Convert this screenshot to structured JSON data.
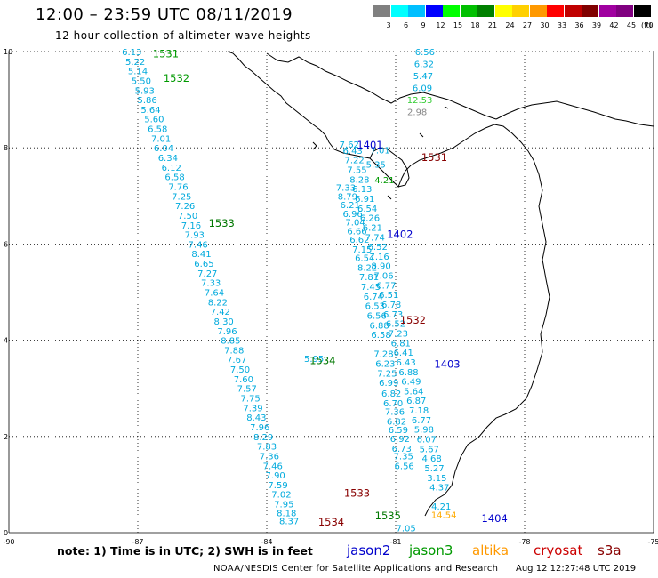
{
  "header": {
    "title": "12:00 – 23:59 UTC 08/11/2019",
    "subtitle": "12 hour collection of altimeter wave heights"
  },
  "legend": {
    "unit": "(ft)",
    "bins": [
      {
        "label": "3",
        "color": "#808080"
      },
      {
        "label": "6",
        "color": "#00ffff"
      },
      {
        "label": "9",
        "color": "#00bfff"
      },
      {
        "label": "12",
        "color": "#0000ff"
      },
      {
        "label": "15",
        "color": "#00ff00"
      },
      {
        "label": "18",
        "color": "#00c000"
      },
      {
        "label": "21",
        "color": "#008000"
      },
      {
        "label": "24",
        "color": "#ffff00"
      },
      {
        "label": "27",
        "color": "#ffd000"
      },
      {
        "label": "30",
        "color": "#ff9900"
      },
      {
        "label": "33",
        "color": "#ff0000"
      },
      {
        "label": "36",
        "color": "#c00000"
      },
      {
        "label": "39",
        "color": "#800000"
      },
      {
        "label": "42",
        "color": "#a000a0"
      },
      {
        "label": "45",
        "color": "#800080"
      },
      {
        "label": "70",
        "color": "#000000"
      }
    ]
  },
  "axes": {
    "lon_ticks": [
      "-90",
      "-87",
      "-84",
      "-81",
      "-78",
      "-75"
    ],
    "lat_ticks": [
      "0",
      "2",
      "4",
      "6",
      "8",
      "10"
    ],
    "xlim": [
      -90,
      -75
    ],
    "ylim": [
      0,
      10
    ]
  },
  "colors": {
    "cyan": "#00aadd",
    "green": "#009900",
    "lightgreen": "#33cc33",
    "gray": "#888888",
    "gold": "#ffaa00",
    "blue": "#0000cc",
    "darkgreen": "#007700",
    "darkred": "#880000"
  },
  "tracks": {
    "track_a": {
      "color": "cyan",
      "points": [
        {
          "lon": -87.14,
          "lat": 10.0,
          "v": "6.13"
        },
        {
          "lon": -87.06,
          "lat": 9.8,
          "v": "5.22"
        },
        {
          "lon": -87.0,
          "lat": 9.6,
          "v": "5.14"
        },
        {
          "lon": -86.92,
          "lat": 9.4,
          "v": "5.50"
        },
        {
          "lon": -86.84,
          "lat": 9.2,
          "v": "5.93"
        },
        {
          "lon": -86.78,
          "lat": 9.0,
          "v": "5.86"
        },
        {
          "lon": -86.7,
          "lat": 8.8,
          "v": "5.64"
        },
        {
          "lon": -86.62,
          "lat": 8.6,
          "v": "5.60"
        },
        {
          "lon": -86.54,
          "lat": 8.4,
          "v": "6.58"
        },
        {
          "lon": -86.46,
          "lat": 8.2,
          "v": "7.01"
        },
        {
          "lon": -86.4,
          "lat": 8.0,
          "v": "6.04"
        },
        {
          "lon": -86.3,
          "lat": 7.8,
          "v": "6.34"
        },
        {
          "lon": -86.22,
          "lat": 7.6,
          "v": "6.12"
        },
        {
          "lon": -86.14,
          "lat": 7.4,
          "v": "6.58"
        },
        {
          "lon": -86.06,
          "lat": 7.2,
          "v": "7.76"
        },
        {
          "lon": -85.98,
          "lat": 7.0,
          "v": "7.25"
        },
        {
          "lon": -85.9,
          "lat": 6.8,
          "v": "7.26"
        },
        {
          "lon": -85.84,
          "lat": 6.6,
          "v": "7.50"
        },
        {
          "lon": -85.76,
          "lat": 6.4,
          "v": "7.16"
        },
        {
          "lon": -85.68,
          "lat": 6.2,
          "v": "7.93"
        },
        {
          "lon": -85.6,
          "lat": 6.0,
          "v": "7.46"
        },
        {
          "lon": -85.52,
          "lat": 5.8,
          "v": "8.41"
        },
        {
          "lon": -85.46,
          "lat": 5.6,
          "v": "6.65"
        },
        {
          "lon": -85.38,
          "lat": 5.4,
          "v": "7.27"
        },
        {
          "lon": -85.3,
          "lat": 5.2,
          "v": "7.33"
        },
        {
          "lon": -85.22,
          "lat": 5.0,
          "v": "7.64"
        },
        {
          "lon": -85.14,
          "lat": 4.8,
          "v": "8.22"
        },
        {
          "lon": -85.08,
          "lat": 4.6,
          "v": "7.42"
        },
        {
          "lon": -85.0,
          "lat": 4.4,
          "v": "8.30"
        },
        {
          "lon": -84.92,
          "lat": 4.2,
          "v": "7.96"
        },
        {
          "lon": -84.84,
          "lat": 4.0,
          "v": "8.85"
        },
        {
          "lon": -84.76,
          "lat": 3.8,
          "v": "7.88"
        },
        {
          "lon": -84.7,
          "lat": 3.6,
          "v": "7.67"
        },
        {
          "lon": -84.62,
          "lat": 3.4,
          "v": "7.50"
        },
        {
          "lon": -84.54,
          "lat": 3.2,
          "v": "7.60"
        },
        {
          "lon": -84.46,
          "lat": 3.0,
          "v": "7.57"
        },
        {
          "lon": -84.38,
          "lat": 2.8,
          "v": "7.75"
        },
        {
          "lon": -84.32,
          "lat": 2.6,
          "v": "7.39"
        },
        {
          "lon": -84.24,
          "lat": 2.4,
          "v": "8.43"
        },
        {
          "lon": -84.16,
          "lat": 2.2,
          "v": "7.96"
        },
        {
          "lon": -84.08,
          "lat": 2.0,
          "v": "8.29"
        },
        {
          "lon": -84.0,
          "lat": 1.8,
          "v": "7.83"
        },
        {
          "lon": -83.94,
          "lat": 1.6,
          "v": "7.36"
        },
        {
          "lon": -83.86,
          "lat": 1.4,
          "v": "7.46"
        },
        {
          "lon": -83.8,
          "lat": 1.2,
          "v": "7.90"
        },
        {
          "lon": -83.74,
          "lat": 1.0,
          "v": "7.59"
        },
        {
          "lon": -83.66,
          "lat": 0.8,
          "v": "7.02"
        },
        {
          "lon": -83.6,
          "lat": 0.6,
          "v": "7.95"
        },
        {
          "lon": -83.54,
          "lat": 0.42,
          "v": "8.18"
        },
        {
          "lon": -83.48,
          "lat": 0.25,
          "v": "8.37"
        }
      ]
    },
    "track_b": {
      "color": "cyan",
      "points": [
        {
          "lon": -82.16,
          "lat": 7.18,
          "v": "7.33"
        },
        {
          "lon": -82.12,
          "lat": 7.0,
          "v": "8.79"
        },
        {
          "lon": -82.06,
          "lat": 6.82,
          "v": "6.21"
        },
        {
          "lon": -82.0,
          "lat": 6.64,
          "v": "6.96"
        },
        {
          "lon": -81.94,
          "lat": 6.46,
          "v": "7.04"
        },
        {
          "lon": -81.9,
          "lat": 6.28,
          "v": "6.66"
        },
        {
          "lon": -81.84,
          "lat": 6.1,
          "v": "6.62"
        },
        {
          "lon": -81.78,
          "lat": 5.9,
          "v": "7.15"
        },
        {
          "lon": -81.72,
          "lat": 5.72,
          "v": "6.54"
        },
        {
          "lon": -81.66,
          "lat": 5.52,
          "v": "8.22"
        },
        {
          "lon": -81.62,
          "lat": 5.32,
          "v": "7.81"
        },
        {
          "lon": -81.58,
          "lat": 5.12,
          "v": "7.45"
        },
        {
          "lon": -81.52,
          "lat": 4.92,
          "v": "6.74"
        },
        {
          "lon": -81.48,
          "lat": 4.72,
          "v": "6.53"
        },
        {
          "lon": -81.44,
          "lat": 4.52,
          "v": "6.56"
        },
        {
          "lon": -81.38,
          "lat": 4.32,
          "v": "6.88"
        },
        {
          "lon": -81.34,
          "lat": 4.12,
          "v": "6.58"
        },
        {
          "lon": -81.28,
          "lat": 3.72,
          "v": "7.28"
        },
        {
          "lon": -81.24,
          "lat": 3.52,
          "v": "6.23"
        },
        {
          "lon": -81.2,
          "lat": 3.32,
          "v": "7.25"
        },
        {
          "lon": -81.16,
          "lat": 3.12,
          "v": "6.99"
        },
        {
          "lon": -81.1,
          "lat": 2.9,
          "v": "6.82"
        },
        {
          "lon": -81.06,
          "lat": 2.7,
          "v": "6.70"
        },
        {
          "lon": -81.02,
          "lat": 2.52,
          "v": "7.36"
        },
        {
          "lon": -80.98,
          "lat": 2.32,
          "v": "6.82"
        },
        {
          "lon": -80.94,
          "lat": 2.14,
          "v": "6.59"
        },
        {
          "lon": -80.9,
          "lat": 1.96,
          "v": "6.92"
        },
        {
          "lon": -80.86,
          "lat": 1.76,
          "v": "6.73"
        },
        {
          "lon": -80.82,
          "lat": 1.6,
          "v": "7.35"
        },
        {
          "lon": -80.8,
          "lat": 1.4,
          "v": "6.56"
        },
        {
          "lon": -80.76,
          "lat": 0.1,
          "v": "7.05"
        }
      ]
    },
    "track_c": {
      "color": "cyan",
      "points": [
        {
          "lon": -82.0,
          "lat": 7.95,
          "v": "6.43"
        },
        {
          "lon": -81.96,
          "lat": 7.75,
          "v": "7.22"
        },
        {
          "lon": -81.9,
          "lat": 7.55,
          "v": "7.55"
        },
        {
          "lon": -81.84,
          "lat": 7.35,
          "v": "8.28"
        },
        {
          "lon": -81.78,
          "lat": 7.15,
          "v": "6.13"
        },
        {
          "lon": -81.72,
          "lat": 6.95,
          "v": "6.91"
        },
        {
          "lon": -81.66,
          "lat": 6.75,
          "v": "6.54"
        },
        {
          "lon": -81.6,
          "lat": 6.55,
          "v": "6.26"
        },
        {
          "lon": -81.54,
          "lat": 6.35,
          "v": "6.21"
        },
        {
          "lon": -81.48,
          "lat": 6.15,
          "v": "7.74"
        },
        {
          "lon": -81.42,
          "lat": 5.95,
          "v": "6.52"
        },
        {
          "lon": -81.38,
          "lat": 5.75,
          "v": "7.16"
        },
        {
          "lon": -81.34,
          "lat": 5.55,
          "v": "8.90"
        },
        {
          "lon": -81.28,
          "lat": 5.35,
          "v": "7.06"
        },
        {
          "lon": -81.22,
          "lat": 5.15,
          "v": "6.77"
        },
        {
          "lon": -81.16,
          "lat": 4.95,
          "v": "6.51"
        },
        {
          "lon": -81.1,
          "lat": 4.75,
          "v": "6.78"
        },
        {
          "lon": -81.06,
          "lat": 4.55,
          "v": "6.73"
        },
        {
          "lon": -81.0,
          "lat": 4.35,
          "v": "6.52"
        },
        {
          "lon": -80.94,
          "lat": 4.15,
          "v": "7.23"
        },
        {
          "lon": -80.88,
          "lat": 3.95,
          "v": "6.81"
        },
        {
          "lon": -80.82,
          "lat": 3.75,
          "v": "6.41"
        },
        {
          "lon": -80.76,
          "lat": 3.55,
          "v": "6.43"
        },
        {
          "lon": -80.7,
          "lat": 3.35,
          "v": "6.88"
        },
        {
          "lon": -80.64,
          "lat": 3.15,
          "v": "6.49"
        },
        {
          "lon": -80.58,
          "lat": 2.95,
          "v": "5.64"
        },
        {
          "lon": -80.52,
          "lat": 2.75,
          "v": "6.87"
        },
        {
          "lon": -80.46,
          "lat": 2.55,
          "v": "7.18"
        },
        {
          "lon": -80.4,
          "lat": 2.35,
          "v": "6.77"
        },
        {
          "lon": -80.34,
          "lat": 2.15,
          "v": "5.98"
        },
        {
          "lon": -80.28,
          "lat": 1.95,
          "v": "6.07"
        },
        {
          "lon": -80.22,
          "lat": 1.75,
          "v": "5.67"
        },
        {
          "lon": -80.16,
          "lat": 1.55,
          "v": "4.68"
        },
        {
          "lon": -80.1,
          "lat": 1.35,
          "v": "5.27"
        },
        {
          "lon": -80.04,
          "lat": 1.15,
          "v": "3.15"
        },
        {
          "lon": -79.98,
          "lat": 0.95,
          "v": "4.37"
        },
        {
          "lon": -79.94,
          "lat": 0.55,
          "v": "4.21"
        }
      ]
    },
    "track_d": {
      "color": "cyan",
      "points": [
        {
          "lon": -80.32,
          "lat": 10.0,
          "v": "6.56"
        },
        {
          "lon": -80.34,
          "lat": 9.75,
          "v": "6.32"
        },
        {
          "lon": -80.36,
          "lat": 9.5,
          "v": "5.47"
        },
        {
          "lon": -80.38,
          "lat": 9.25,
          "v": "6.09"
        }
      ]
    },
    "extras": [
      {
        "lon": -80.44,
        "lat": 9.0,
        "v": "12.53",
        "color": "lightgreen"
      },
      {
        "lon": -80.5,
        "lat": 8.75,
        "v": "2.98",
        "color": "gray"
      },
      {
        "lon": -82.08,
        "lat": 8.08,
        "v": "7.62",
        "color": "cyan"
      },
      {
        "lon": -81.46,
        "lat": 7.66,
        "v": "5.35",
        "color": "cyan"
      },
      {
        "lon": -81.26,
        "lat": 7.34,
        "v": "4.21",
        "color": "green"
      },
      {
        "lon": -81.36,
        "lat": 7.96,
        "v": "7.01",
        "color": "cyan"
      },
      {
        "lon": -82.9,
        "lat": 3.62,
        "v": "5.95",
        "color": "cyan"
      },
      {
        "lon": -79.88,
        "lat": 0.38,
        "v": "14.54",
        "color": "gold"
      }
    ]
  },
  "pass_labels": [
    {
      "text": "1531",
      "lon": -86.35,
      "lat": 9.95,
      "color": "green"
    },
    {
      "text": "1532",
      "lon": -86.1,
      "lat": 9.45,
      "color": "green"
    },
    {
      "text": "1533",
      "lon": -85.05,
      "lat": 6.43,
      "color": "darkgreen"
    },
    {
      "text": "1534",
      "lon": -82.7,
      "lat": 3.58,
      "color": "darkgreen"
    },
    {
      "text": "1535",
      "lon": -81.18,
      "lat": 0.35,
      "color": "darkgreen"
    },
    {
      "text": "1533",
      "lon": -81.9,
      "lat": 0.82,
      "color": "darkred"
    },
    {
      "text": "1534",
      "lon": -82.5,
      "lat": 0.22,
      "color": "darkred"
    },
    {
      "text": "1531",
      "lon": -80.1,
      "lat": 7.8,
      "color": "darkred"
    },
    {
      "text": "1532",
      "lon": -80.6,
      "lat": 4.42,
      "color": "darkred"
    },
    {
      "text": "1401",
      "lon": -81.6,
      "lat": 8.06,
      "color": "blue"
    },
    {
      "text": "1402",
      "lon": -80.9,
      "lat": 6.2,
      "color": "blue"
    },
    {
      "text": "1403",
      "lon": -79.8,
      "lat": 3.5,
      "color": "blue"
    },
    {
      "text": "1404",
      "lon": -78.7,
      "lat": 0.3,
      "color": "blue"
    }
  ],
  "note": "note:  1) Time is in UTC;  2) SWH is in feet",
  "satellites": [
    {
      "name": "jason2",
      "color": "#0000cc"
    },
    {
      "name": "jason3",
      "color": "#009900"
    },
    {
      "name": "altika",
      "color": "#ff9900"
    },
    {
      "name": "cryosat",
      "color": "#cc0000"
    },
    {
      "name": "s3a",
      "color": "#880000"
    }
  ],
  "footer": {
    "credit": "NOAA/NESDIS Center for Satellite Applications and Research",
    "timestamp": "Aug 12 12:27:48 UTC 2019"
  }
}
